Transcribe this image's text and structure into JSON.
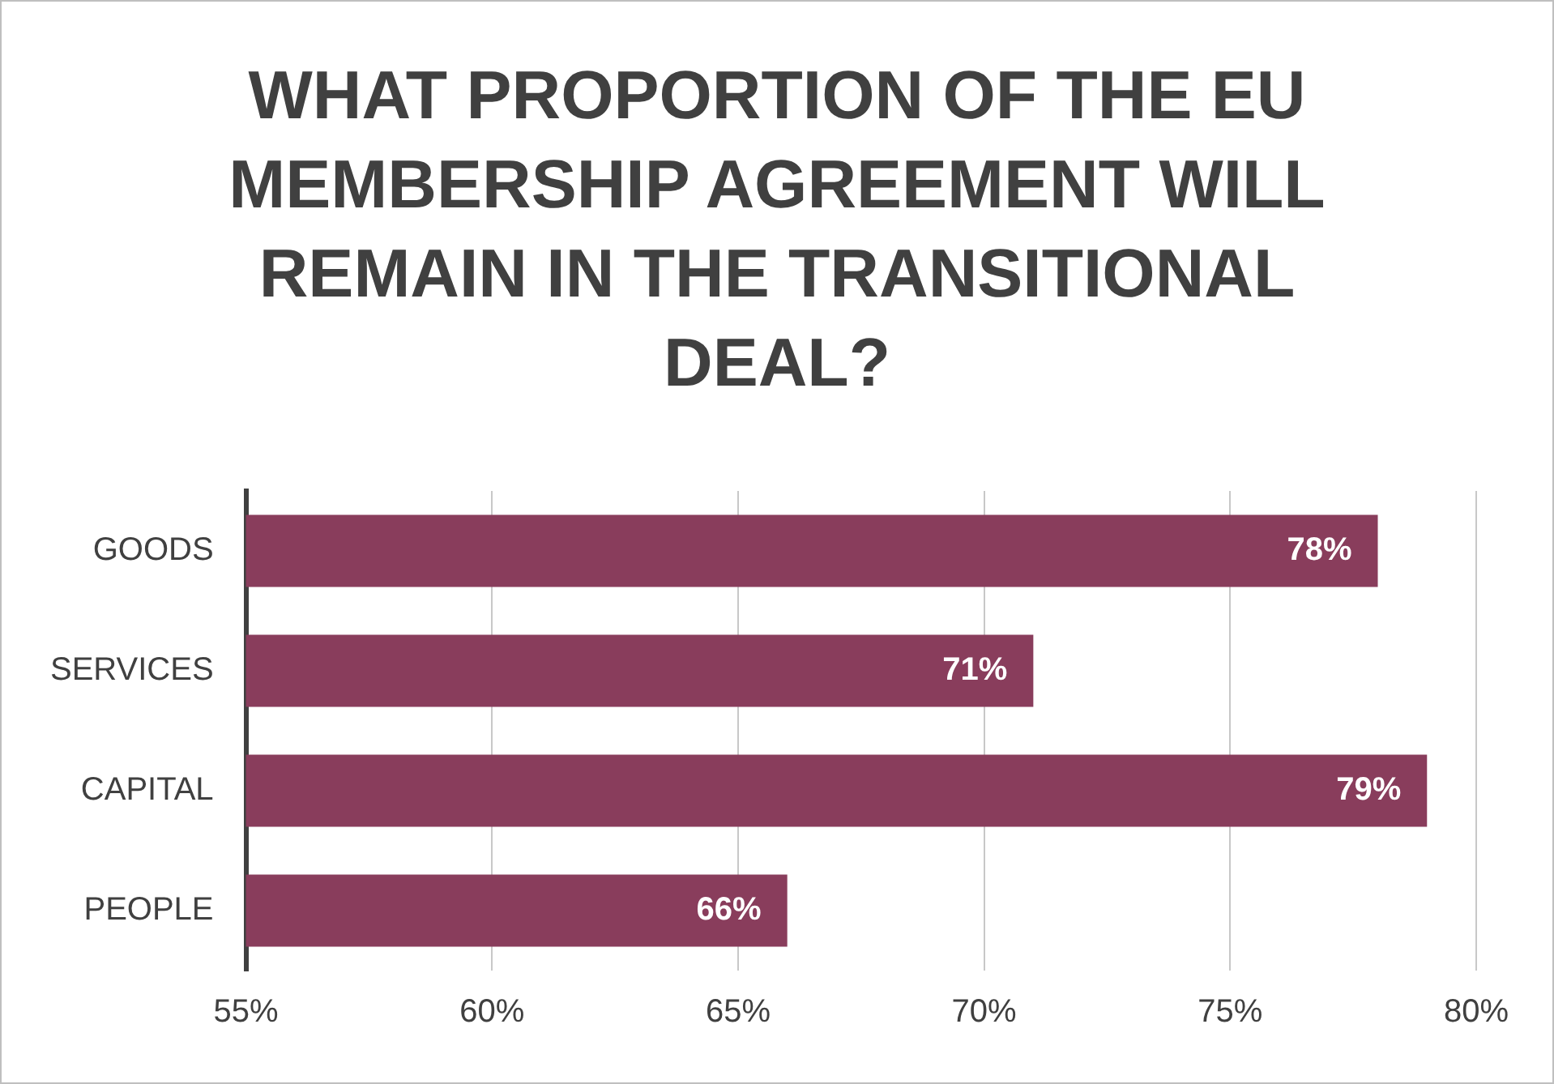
{
  "chart_data": {
    "type": "bar",
    "orientation": "horizontal",
    "title": "WHAT PROPORTION OF THE EU MEMBERSHIP AGREEMENT WILL REMAIN IN THE TRANSITIONAL DEAL?",
    "categories": [
      "GOODS",
      "SERVICES",
      "CAPITAL",
      "PEOPLE"
    ],
    "values": [
      78,
      71,
      79,
      66
    ],
    "value_labels": [
      "78%",
      "71%",
      "79%",
      "66%"
    ],
    "color": "#893d5c",
    "xlim": [
      55,
      80
    ],
    "xticks": [
      {
        "value": 55,
        "label": "55%"
      },
      {
        "value": 60,
        "label": "60%"
      },
      {
        "value": 65,
        "label": "65%"
      },
      {
        "value": 70,
        "label": "70%"
      },
      {
        "value": 75,
        "label": "75%"
      },
      {
        "value": 80,
        "label": "80%"
      }
    ],
    "grid": "x",
    "legend": false
  }
}
